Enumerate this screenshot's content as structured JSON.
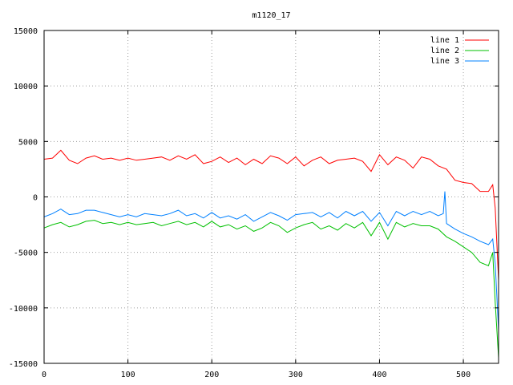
{
  "chart_data": {
    "type": "line",
    "title": "m1120_17",
    "xlabel": "",
    "ylabel": "",
    "xlim": [
      0,
      542
    ],
    "ylim": [
      -15000,
      15000
    ],
    "xticks": [
      0,
      100,
      200,
      300,
      400,
      500
    ],
    "yticks": [
      -15000,
      -10000,
      -5000,
      0,
      5000,
      10000,
      15000
    ],
    "grid": true,
    "legend_position": "top-right",
    "series": [
      {
        "name": "line 1",
        "color": "#ff0000",
        "x": [
          0,
          10,
          20,
          30,
          40,
          50,
          60,
          70,
          80,
          90,
          100,
          110,
          120,
          130,
          140,
          150,
          160,
          170,
          180,
          190,
          200,
          210,
          220,
          230,
          240,
          250,
          260,
          270,
          280,
          290,
          300,
          310,
          320,
          330,
          340,
          350,
          360,
          370,
          380,
          390,
          400,
          410,
          420,
          430,
          440,
          450,
          460,
          470,
          480,
          490,
          500,
          510,
          520,
          530,
          535,
          538,
          542
        ],
        "y": [
          3400,
          3500,
          4200,
          3300,
          3000,
          3500,
          3700,
          3400,
          3500,
          3300,
          3500,
          3300,
          3400,
          3500,
          3600,
          3300,
          3700,
          3400,
          3800,
          3000,
          3200,
          3600,
          3100,
          3500,
          2900,
          3400,
          3000,
          3700,
          3500,
          3000,
          3600,
          2800,
          3300,
          3600,
          3000,
          3300,
          3400,
          3500,
          3200,
          2300,
          3800,
          2900,
          3600,
          3300,
          2600,
          3600,
          3400,
          2800,
          2500,
          1500,
          1300,
          1200,
          500,
          500,
          1100,
          -1000,
          -7500
        ]
      },
      {
        "name": "line 2",
        "color": "#00c000",
        "x": [
          0,
          10,
          20,
          30,
          40,
          50,
          60,
          70,
          80,
          90,
          100,
          110,
          120,
          130,
          140,
          150,
          160,
          170,
          180,
          190,
          200,
          210,
          220,
          230,
          240,
          250,
          260,
          270,
          280,
          290,
          300,
          310,
          320,
          330,
          340,
          350,
          360,
          370,
          380,
          390,
          400,
          410,
          420,
          430,
          440,
          450,
          460,
          470,
          480,
          490,
          500,
          510,
          520,
          530,
          535,
          538,
          542
        ],
        "y": [
          -2800,
          -2500,
          -2300,
          -2700,
          -2500,
          -2200,
          -2100,
          -2400,
          -2300,
          -2500,
          -2300,
          -2500,
          -2400,
          -2300,
          -2600,
          -2400,
          -2200,
          -2500,
          -2300,
          -2700,
          -2200,
          -2700,
          -2500,
          -2900,
          -2600,
          -3100,
          -2800,
          -2300,
          -2600,
          -3200,
          -2800,
          -2500,
          -2300,
          -2900,
          -2600,
          -3000,
          -2400,
          -2800,
          -2300,
          -3500,
          -2300,
          -3800,
          -2300,
          -2700,
          -2400,
          -2600,
          -2600,
          -2900,
          -3600,
          -4000,
          -4500,
          -5000,
          -5900,
          -6200,
          -5000,
          -9500,
          -14500
        ]
      },
      {
        "name": "line 3",
        "color": "#0080ff",
        "x": [
          0,
          10,
          20,
          30,
          40,
          50,
          60,
          70,
          80,
          90,
          100,
          110,
          120,
          130,
          140,
          150,
          160,
          170,
          180,
          190,
          200,
          210,
          220,
          230,
          240,
          250,
          260,
          270,
          280,
          290,
          300,
          310,
          320,
          330,
          340,
          350,
          360,
          370,
          380,
          390,
          400,
          410,
          420,
          430,
          440,
          450,
          460,
          470,
          476,
          478,
          480,
          490,
          500,
          510,
          520,
          530,
          535,
          538,
          542
        ],
        "y": [
          -1800,
          -1500,
          -1100,
          -1600,
          -1500,
          -1200,
          -1200,
          -1400,
          -1600,
          -1800,
          -1600,
          -1800,
          -1500,
          -1600,
          -1700,
          -1500,
          -1200,
          -1700,
          -1500,
          -1900,
          -1400,
          -1900,
          -1700,
          -2000,
          -1600,
          -2200,
          -1800,
          -1400,
          -1700,
          -2100,
          -1600,
          -1500,
          -1400,
          -1800,
          -1400,
          -1900,
          -1300,
          -1700,
          -1300,
          -2200,
          -1400,
          -2600,
          -1300,
          -1700,
          -1300,
          -1600,
          -1300,
          -1700,
          -1500,
          500,
          -2400,
          -2900,
          -3300,
          -3600,
          -4000,
          -4300,
          -3800,
          -6000,
          -12000
        ]
      }
    ]
  }
}
